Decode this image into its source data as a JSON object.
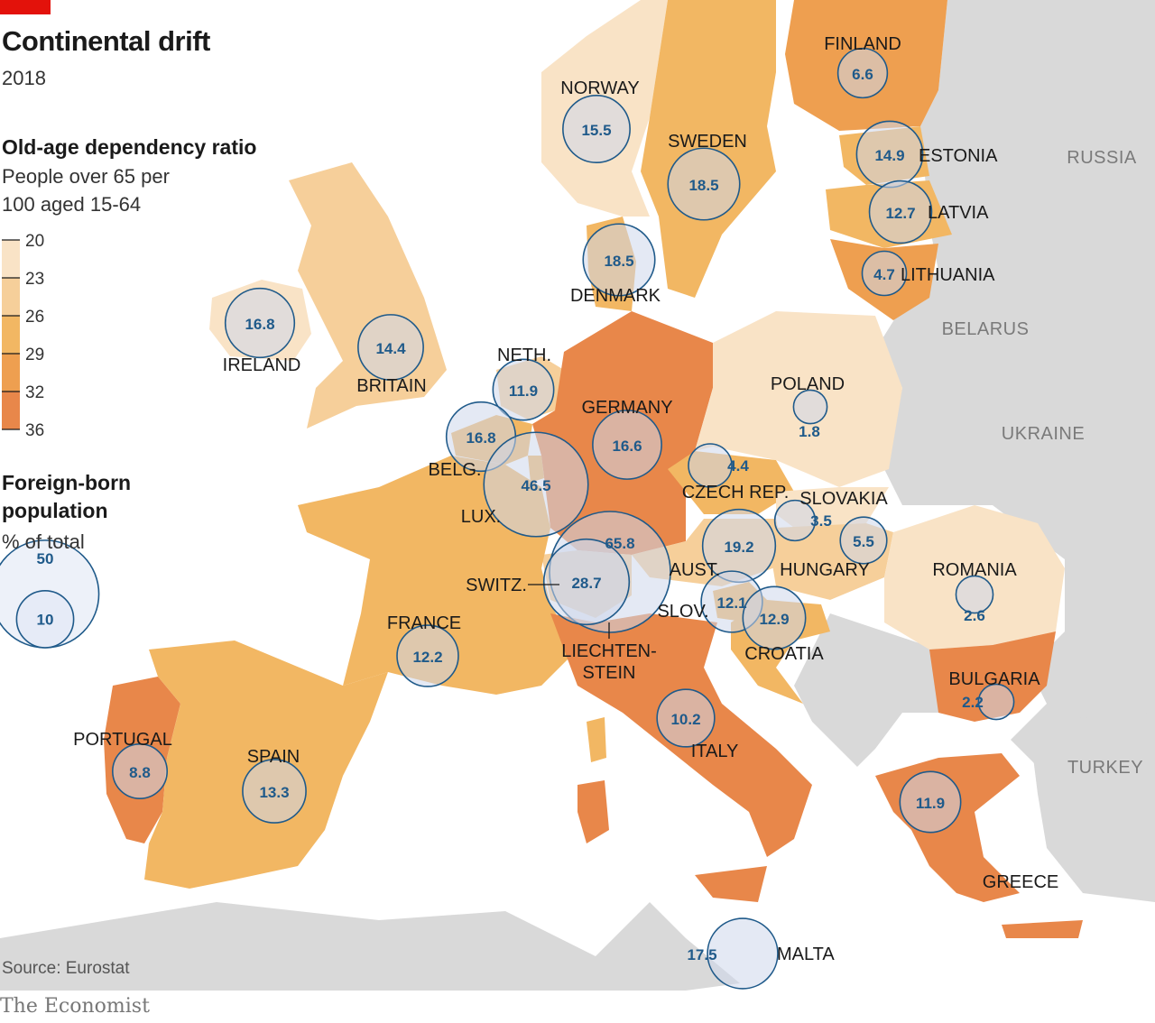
{
  "title": "Continental drift",
  "subtitle": "2018",
  "legend": {
    "color_title": "Old-age dependency ratio",
    "color_sub_line1": "People over 65 per",
    "color_sub_line2": "100 aged 15-64",
    "color_scale": {
      "ticks": [
        "20",
        "23",
        "26",
        "29",
        "32",
        "36"
      ],
      "colors": [
        "#f9e3c6",
        "#f6cf9a",
        "#f2b763",
        "#ee9f50",
        "#e8874a"
      ]
    },
    "size_title_line1": "Foreign-born",
    "size_title_line2": "population",
    "size_sub": "% of total",
    "size_examples": [
      {
        "label": "50",
        "value": 50
      },
      {
        "label": "10",
        "value": 10
      }
    ]
  },
  "source": "Source: Eurostat",
  "brand": "The Economist",
  "colors": {
    "bubble_stroke": "#1f5a8a",
    "bubble_fill": "rgba(205,215,235,0.55)",
    "land_other": "#d9d9d9",
    "sea": "#ffffff"
  },
  "countries": [
    {
      "name": "FINLAND",
      "value": "6.6"
    },
    {
      "name": "NORWAY",
      "value": "15.5"
    },
    {
      "name": "SWEDEN",
      "value": "18.5"
    },
    {
      "name": "ESTONIA",
      "value": "14.9"
    },
    {
      "name": "LATVIA",
      "value": "12.7"
    },
    {
      "name": "LITHUANIA",
      "value": "4.7"
    },
    {
      "name": "DENMARK",
      "value": "18.5"
    },
    {
      "name": "IRELAND",
      "value": "16.8"
    },
    {
      "name": "BRITAIN",
      "value": "14.4"
    },
    {
      "name": "NETH.",
      "value": "11.9"
    },
    {
      "name": "BELG.",
      "value": "16.8"
    },
    {
      "name": "LUX.",
      "value": "46.5"
    },
    {
      "name": "GERMANY",
      "value": "16.6"
    },
    {
      "name": "POLAND",
      "value": "1.8"
    },
    {
      "name": "CZECH REP.",
      "value": "4.4"
    },
    {
      "name": "SLOVAKIA",
      "value": "3.5"
    },
    {
      "name": "AUST.",
      "value": "19.2"
    },
    {
      "name": "HUNGARY",
      "value": "5.5"
    },
    {
      "name": "ROMANIA",
      "value": "2.6"
    },
    {
      "name": "LIECHTEN-STEIN",
      "value": "65.8"
    },
    {
      "name": "SWITZ.",
      "value": "28.7"
    },
    {
      "name": "SLOV.",
      "value": "12.1"
    },
    {
      "name": "CROATIA",
      "value": "12.9"
    },
    {
      "name": "FRANCE",
      "value": "12.2"
    },
    {
      "name": "BULGARIA",
      "value": "2.2"
    },
    {
      "name": "ITALY",
      "value": "10.2"
    },
    {
      "name": "PORTUGAL",
      "value": "8.8"
    },
    {
      "name": "SPAIN",
      "value": "13.3"
    },
    {
      "name": "GREECE",
      "value": "11.9"
    },
    {
      "name": "MALTA",
      "value": "17.5"
    }
  ],
  "neighbors": [
    "RUSSIA",
    "BELARUS",
    "UKRAINE",
    "TURKEY"
  ]
}
